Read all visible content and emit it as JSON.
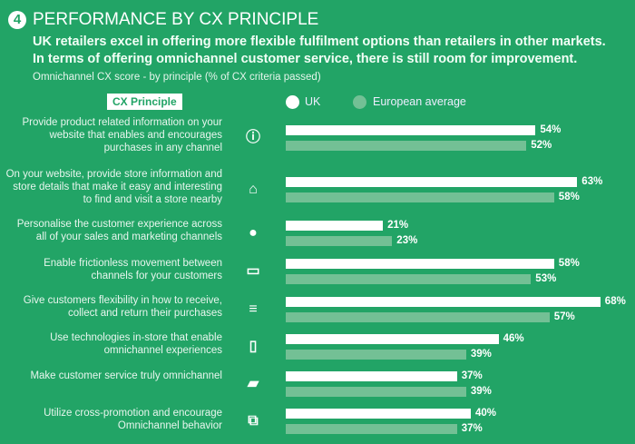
{
  "header": {
    "number": "4",
    "title": "PERFORMANCE BY CX PRINCIPLE",
    "subtitle_lines": [
      "UK retailers excel in offering more flexible fulfilment options than retailers in other markets.",
      "In terms of offering omnichannel customer service, there is still room for improvement."
    ],
    "note": "Omnichannel CX score - by principle (% of CX criteria passed)"
  },
  "colors": {
    "background": "#22a466",
    "uk": "#ffffff",
    "european_average": "#73c095"
  },
  "chart_data": {
    "type": "bar",
    "orientation": "horizontal",
    "unit": "%",
    "xlim": [
      0,
      100
    ],
    "category_header": "CX Principle",
    "categories": [
      "Provide product related information on your website that enables and encourages purchases in any channel",
      "On your website, provide store information and store details that make it easy and interesting to find and visit a store nearby",
      "Personalise the customer experience across all of your sales and marketing channels",
      "Enable frictionless movement between channels for your customers",
      "Give customers flexibility in how to receive, collect and return their purchases",
      "Use technologies in-store that enable omnichannel experiences",
      "Make customer service truly omnichannel",
      "Utilize cross-promotion and encourage Omnichannel behavior"
    ],
    "icons": [
      "info-icon",
      "store-icon",
      "person-icon",
      "devices-icon",
      "sliders-icon",
      "phone-nfc-icon",
      "chat-icon",
      "link-devices-icon"
    ],
    "series": [
      {
        "name": "UK",
        "values": [
          54,
          63,
          21,
          58,
          68,
          46,
          37,
          40
        ]
      },
      {
        "name": "European average",
        "values": [
          52,
          58,
          23,
          53,
          57,
          39,
          39,
          37
        ]
      }
    ],
    "legend": "top"
  }
}
